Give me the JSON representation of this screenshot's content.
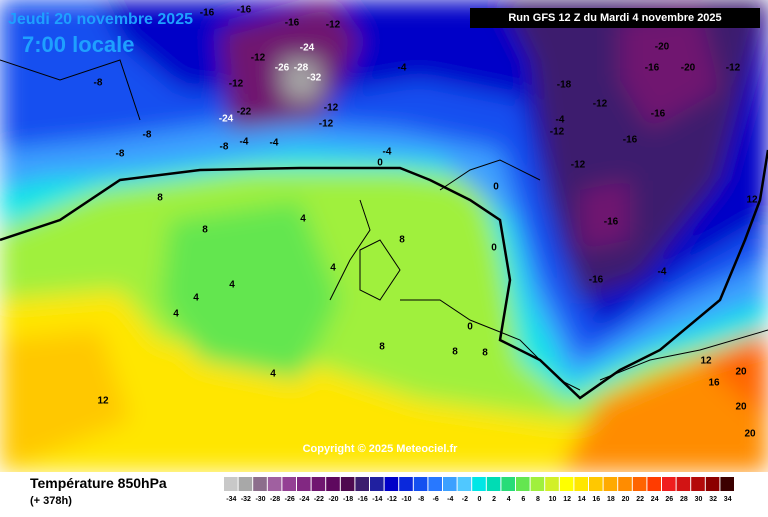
{
  "header": {
    "date": "Jeudi 20 novembre 2025",
    "time": "7:00 locale",
    "run": "Run GFS 12 Z du Mardi 4 novembre 2025"
  },
  "copyright": "Copyright © 2025 Meteociel.fr",
  "footer": {
    "title": "Température 850hPa",
    "lead": "(+ 378h)"
  },
  "legend": {
    "ticks": [
      -34,
      -32,
      -30,
      -28,
      -26,
      -24,
      -22,
      -20,
      -18,
      -16,
      -14,
      -12,
      -10,
      -8,
      -6,
      -4,
      -2,
      0,
      2,
      4,
      6,
      8,
      10,
      12,
      14,
      16,
      18,
      20,
      22,
      24,
      26,
      28,
      30,
      32,
      34
    ],
    "colors": [
      "#c8c8c8",
      "#a8a8a8",
      "#8c6e8c",
      "#a060a0",
      "#944094",
      "#822882",
      "#701670",
      "#5e085e",
      "#4e0a50",
      "#3c1e6e",
      "#2020a0",
      "#0000c8",
      "#0a28dc",
      "#1450f0",
      "#2878ff",
      "#3ca0ff",
      "#50c8ff",
      "#00e6e6",
      "#00dcb4",
      "#28dc78",
      "#64e650",
      "#a0f03c",
      "#d2f028",
      "#ffff00",
      "#ffe600",
      "#ffc800",
      "#ffaa00",
      "#ff8c00",
      "#ff6400",
      "#ff3c00",
      "#f01e1e",
      "#d21414",
      "#b40a0a",
      "#8c0000",
      "#3c0000"
    ]
  },
  "contour_labels": [
    "-16",
    "-16",
    "-16",
    "-12",
    "-12",
    "-26",
    "-32",
    "-24",
    "-28",
    "-12",
    "-12",
    "-24",
    "-22",
    "-12",
    "-8",
    "-8",
    "-8",
    "-8",
    "-4",
    "-4",
    "-4",
    "-4",
    "0",
    "0",
    "0",
    "-4",
    "-18",
    "-12",
    "-12",
    "-12",
    "-16",
    "-16",
    "-20",
    "-20",
    "-16",
    "-16",
    "-12",
    "-16",
    "-4",
    "0",
    "4",
    "4",
    "4",
    "4",
    "4",
    "4",
    "8",
    "8",
    "8",
    "8",
    "8",
    "8",
    "12",
    "12",
    "12",
    "16",
    "20",
    "20",
    "20"
  ]
}
